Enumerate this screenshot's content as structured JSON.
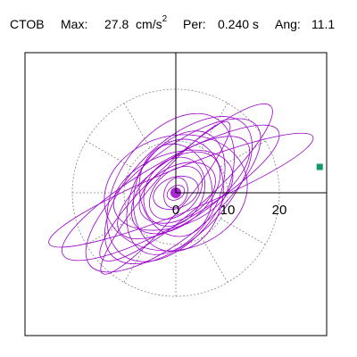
{
  "header": {
    "station": "CTOB",
    "max_label": "Max:",
    "max_value": "27.8",
    "max_unit": "cm/s",
    "max_unit_exp": "2",
    "per_label": "Per:",
    "per_value": "0.240 s",
    "ang_label": "Ang:",
    "ang_value": "11.1"
  },
  "chart_data": {
    "type": "polar-orbit",
    "radial_ticks": [
      10,
      20
    ],
    "rings": [
      10,
      20
    ],
    "spokes_deg": [
      0,
      30,
      60,
      90,
      120,
      150,
      180,
      210,
      240,
      270,
      300,
      330
    ],
    "r_max": 28,
    "peak": {
      "x": 27.8,
      "y": 5.0
    },
    "trace_color": "#9900cc",
    "peak_color": "#119966",
    "axis_color": "#000000",
    "grid_color": "#888888",
    "grid_dashed": true,
    "ellipses": [
      {
        "a": 27.5,
        "b": 4.2,
        "angle": 22,
        "cx": 1.0,
        "cy": 0.5
      },
      {
        "a": 24.0,
        "b": 6.0,
        "angle": 30,
        "cx": -1.0,
        "cy": 0.0
      },
      {
        "a": 21.0,
        "b": 8.0,
        "angle": 40,
        "cx": -0.5,
        "cy": -0.5
      },
      {
        "a": 18.0,
        "b": 9.0,
        "angle": 45,
        "cx": 0.5,
        "cy": 0.5
      },
      {
        "a": 16.0,
        "b": 10.0,
        "angle": 55,
        "cx": -1.0,
        "cy": 1.0
      },
      {
        "a": 15.0,
        "b": 6.0,
        "angle": 35,
        "cx": 1.5,
        "cy": 1.0
      },
      {
        "a": 13.0,
        "b": 8.0,
        "angle": 60,
        "cx": 0.0,
        "cy": 0.0
      },
      {
        "a": 12.0,
        "b": 7.0,
        "angle": 20,
        "cx": -0.5,
        "cy": 0.5
      },
      {
        "a": 11.0,
        "b": 8.5,
        "angle": 75,
        "cx": 0.5,
        "cy": -0.5
      },
      {
        "a": 10.0,
        "b": 6.0,
        "angle": 40,
        "cx": 0.0,
        "cy": 0.0
      },
      {
        "a": 9.0,
        "b": 7.0,
        "angle": 100,
        "cx": 0.0,
        "cy": 0.5
      },
      {
        "a": 8.0,
        "b": 5.0,
        "angle": 30,
        "cx": 0.3,
        "cy": 0.0
      },
      {
        "a": 7.0,
        "b": 5.5,
        "angle": 60,
        "cx": -0.3,
        "cy": 0.2
      },
      {
        "a": 6.0,
        "b": 4.0,
        "angle": 45,
        "cx": 0.0,
        "cy": 0.0
      },
      {
        "a": 4.5,
        "b": 3.0,
        "angle": 20,
        "cx": 0.0,
        "cy": 0.0
      },
      {
        "a": 3.0,
        "b": 2.2,
        "angle": 70,
        "cx": 0.0,
        "cy": 0.0
      },
      {
        "a": 1.8,
        "b": 1.3,
        "angle": 30,
        "cx": 0.0,
        "cy": 0.0
      },
      {
        "a": 19.0,
        "b": 3.5,
        "angle": 50,
        "cx": -2.0,
        "cy": -1.0
      },
      {
        "a": 14.0,
        "b": 11.0,
        "angle": 15,
        "cx": 0.0,
        "cy": 0.0
      },
      {
        "a": 22.0,
        "b": 5.0,
        "angle": 42,
        "cx": 2.0,
        "cy": 2.0
      }
    ]
  }
}
